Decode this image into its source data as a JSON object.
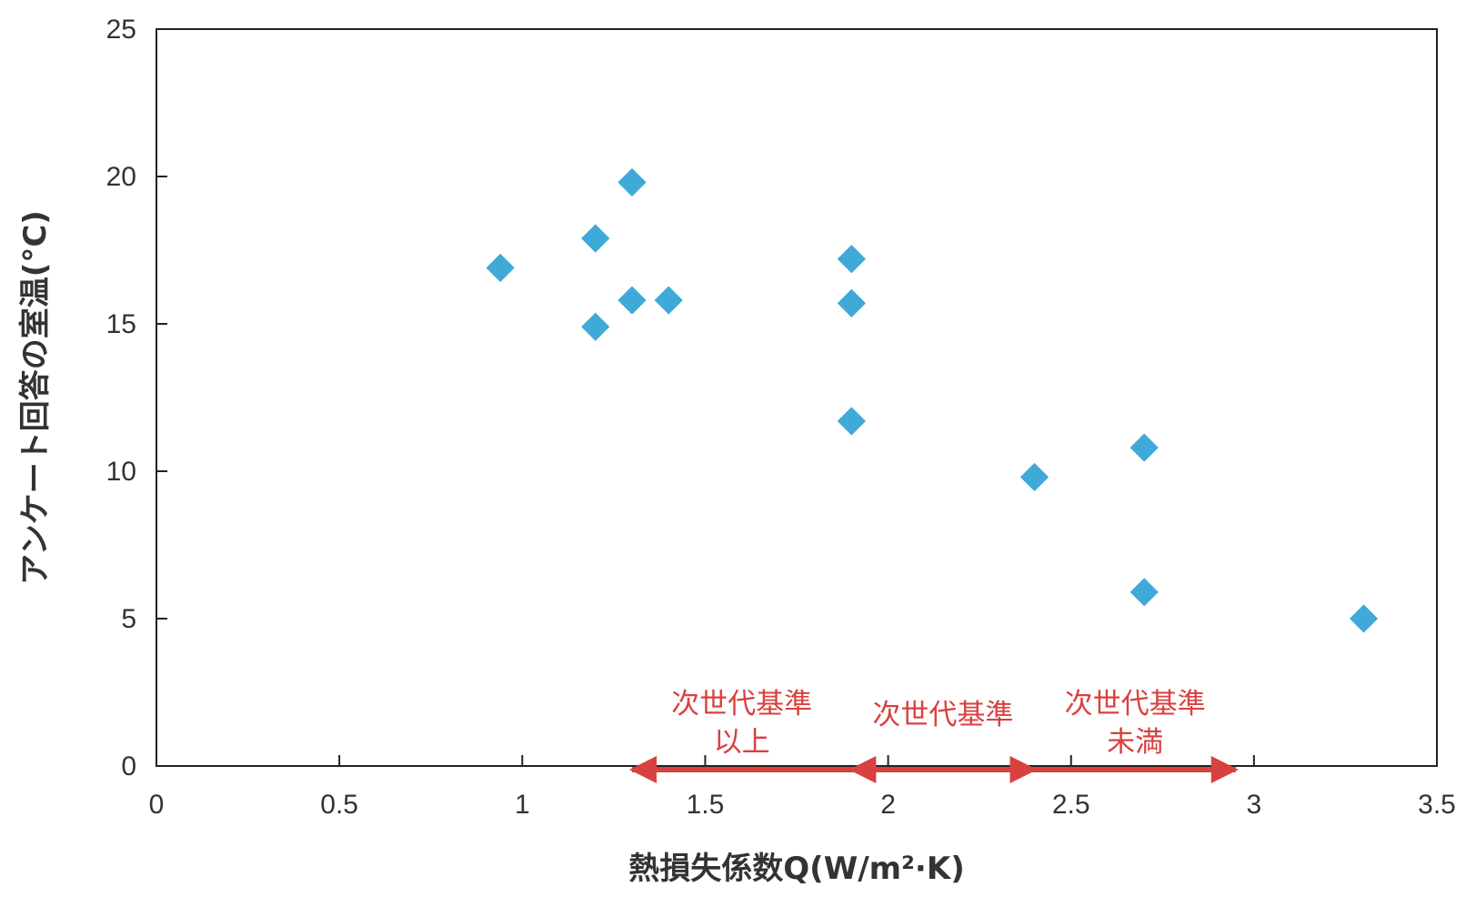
{
  "chart_data": {
    "type": "scatter",
    "xlabel": "熱損失係数Q(W/m²·K)",
    "ylabel": "アンケート回答の室温(°C)",
    "xlim": [
      0,
      3.5
    ],
    "ylim": [
      0,
      25
    ],
    "xticks": [
      "0",
      "0.5",
      "1",
      "1.5",
      "2",
      "2.5",
      "3",
      "3.5"
    ],
    "yticks": [
      "0",
      "5",
      "10",
      "15",
      "20",
      "25"
    ],
    "grid": false,
    "marker_color": "#3fa9d8",
    "series": [
      {
        "points": [
          {
            "x": 0.94,
            "y": 16.9
          },
          {
            "x": 1.2,
            "y": 17.9
          },
          {
            "x": 1.2,
            "y": 14.9
          },
          {
            "x": 1.3,
            "y": 19.8
          },
          {
            "x": 1.3,
            "y": 15.8
          },
          {
            "x": 1.4,
            "y": 15.8
          },
          {
            "x": 1.9,
            "y": 17.2
          },
          {
            "x": 1.9,
            "y": 15.7
          },
          {
            "x": 1.9,
            "y": 11.7
          },
          {
            "x": 2.4,
            "y": 9.8
          },
          {
            "x": 2.7,
            "y": 10.8
          },
          {
            "x": 2.7,
            "y": 5.9
          },
          {
            "x": 3.3,
            "y": 5.0
          }
        ]
      }
    ],
    "annotations": {
      "color": "#d8413f",
      "ranges": [
        {
          "x_start": 1.9,
          "x_end": 1.3,
          "lines": [
            "次世代基準",
            "以上"
          ]
        },
        {
          "x_start": 1.9,
          "x_end": 2.4,
          "lines": [
            "次世代基準"
          ],
          "double_headed": true
        },
        {
          "x_start": 2.4,
          "x_end": 2.95,
          "lines": [
            "次世代基準",
            "未満"
          ]
        }
      ]
    }
  }
}
